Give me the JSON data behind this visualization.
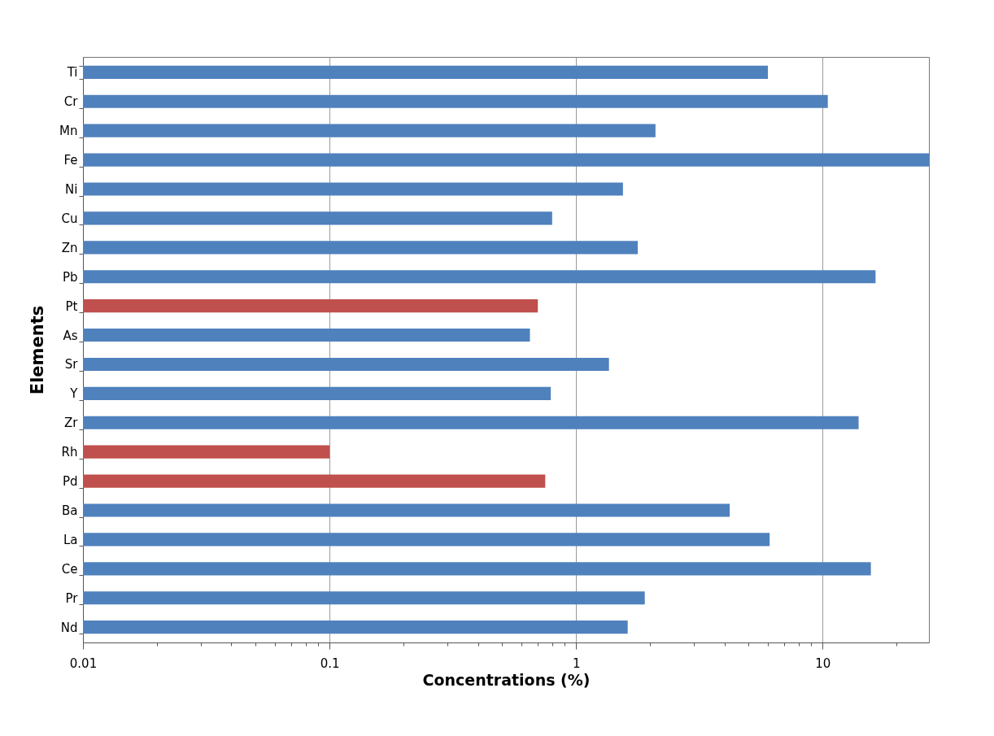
{
  "chart_data": {
    "type": "bar",
    "orientation": "horizontal",
    "log": "x",
    "xlabel": "Concentrations (%)",
    "ylabel": "Elements",
    "categories": [
      "Ti",
      "Cr",
      "Mn",
      "Fe",
      "Ni",
      "Cu",
      "Zn",
      "Pb",
      "Pt",
      "As",
      "Sr",
      "Y",
      "Zr",
      "Rh",
      "Pd",
      "Ba",
      "La",
      "Ce",
      "Pr",
      "Nd"
    ],
    "values": [
      6.0,
      10.5,
      2.1,
      27,
      1.55,
      0.8,
      1.78,
      16.4,
      0.7,
      0.65,
      1.36,
      0.79,
      14,
      0.1,
      0.75,
      4.2,
      6.1,
      15.7,
      1.9,
      1.62
    ],
    "colors": [
      "#4f81bd",
      "#4f81bd",
      "#4f81bd",
      "#4f81bd",
      "#4f81bd",
      "#4f81bd",
      "#4f81bd",
      "#4f81bd",
      "#c0504d",
      "#4f81bd",
      "#4f81bd",
      "#4f81bd",
      "#4f81bd",
      "#c0504d",
      "#c0504d",
      "#4f81bd",
      "#4f81bd",
      "#4f81bd",
      "#4f81bd",
      "#4f81bd"
    ],
    "xlim": [
      0.01,
      27
    ],
    "xticks": [
      0.01,
      {
        "value": 0.02,
        "label": null
      },
      {
        "value": 0.03,
        "label": null
      },
      {
        "value": 0.04,
        "label": null
      },
      {
        "value": 0.05,
        "label": null
      },
      {
        "value": 0.06,
        "label": null
      },
      {
        "value": 0.07,
        "label": null
      },
      {
        "value": 0.08,
        "label": null
      },
      {
        "value": 0.09,
        "label": null
      },
      0.1,
      {
        "value": 0.2,
        "label": null
      },
      {
        "value": 0.3,
        "label": null
      },
      {
        "value": 0.4,
        "label": null
      },
      {
        "value": 0.5,
        "label": null
      },
      {
        "value": 0.6,
        "label": null
      },
      {
        "value": 0.7,
        "label": null
      },
      {
        "value": 0.8,
        "label": null
      },
      {
        "value": 0.9,
        "label": null
      },
      1,
      {
        "value": 2,
        "label": null
      },
      {
        "value": 3,
        "label": null
      },
      {
        "value": 4,
        "label": null
      },
      {
        "value": 5,
        "label": null
      },
      {
        "value": 6,
        "label": null
      },
      {
        "value": 7,
        "label": null
      },
      {
        "value": 8,
        "label": null
      },
      {
        "value": 9,
        "label": null
      },
      10,
      {
        "value": 20,
        "label": null
      }
    ],
    "grid": "x"
  }
}
